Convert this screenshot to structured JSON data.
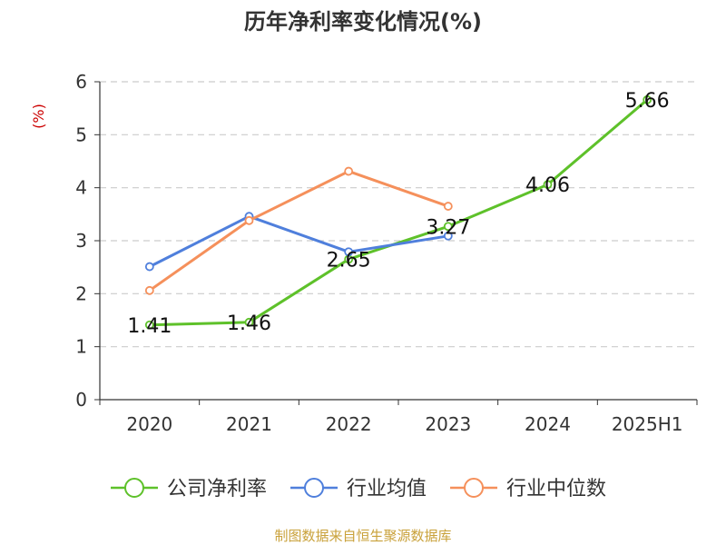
{
  "title": "历年净利率变化情况(%)",
  "source": "制图数据来自恒生聚源数据库",
  "chart_data": {
    "type": "line",
    "title": "历年净利率变化情况(%)",
    "ylabel": "(%)",
    "xlabel": "",
    "categories": [
      "2020",
      "2021",
      "2022",
      "2023",
      "2024",
      "2025H1"
    ],
    "ylim": [
      0,
      6
    ],
    "yticks": [
      "0",
      "1",
      "2",
      "3",
      "4",
      "5",
      "6"
    ],
    "grid": true,
    "legend_position": "bottom",
    "series": [
      {
        "name": "公司净利率",
        "color": "#5ec12a",
        "values": [
          1.41,
          1.46,
          2.65,
          3.27,
          4.06,
          5.66
        ],
        "labels": [
          "1.41",
          "1.46",
          "2.65",
          "3.27",
          "4.06",
          "5.66"
        ]
      },
      {
        "name": "行业均值",
        "color": "#4f7fdc",
        "values": [
          2.51,
          3.46,
          2.79,
          3.09,
          null,
          null
        ]
      },
      {
        "name": "行业中位数",
        "color": "#f5905b",
        "values": [
          2.06,
          3.38,
          4.31,
          3.65,
          null,
          null
        ]
      }
    ]
  }
}
